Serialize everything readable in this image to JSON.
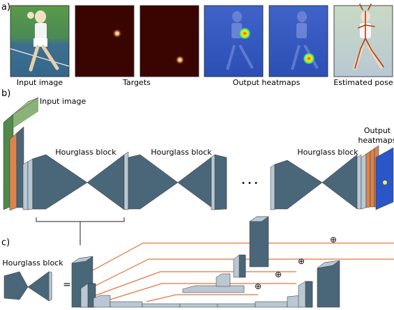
{
  "panels": {
    "a": "a)",
    "b": "b)",
    "c": "c)"
  },
  "captions": {
    "input_image": "Input image",
    "targets": "Targets",
    "output_heatmaps": "Output heatmaps",
    "estimated_pose": "Estimated pose"
  },
  "network": {
    "input_label": "Input image",
    "hourglass_1": "Hourglass block",
    "hourglass_2": "Hourglass block",
    "hourglass_3": "Hourglass block",
    "ellipsis": "•  •  •",
    "output_line1": "Output",
    "output_line2": "heatmaps"
  },
  "detail": {
    "hourglass_label": "Hourglass block",
    "equals": "=",
    "sum_symbol": "⊕"
  },
  "colors": {
    "block": "#4a6779",
    "block_dark": "#2f4555",
    "block_light": "#b9c8d2",
    "skip": "#e4763e",
    "heat_bg": "#3a0500",
    "heatmap_blue": "#2a56c8"
  }
}
